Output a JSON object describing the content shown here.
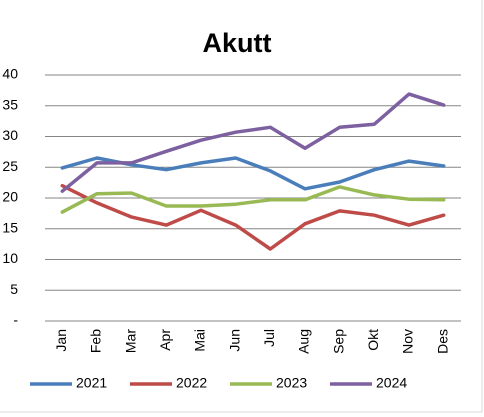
{
  "chart_data": {
    "type": "line",
    "title": "Akutt",
    "categories": [
      "Jan",
      "Feb",
      "Mar",
      "Apr",
      "Mai",
      "Jun",
      "Jul",
      "Aug",
      "Sep",
      "Okt",
      "Nov",
      "Des"
    ],
    "series": [
      {
        "name": "2021",
        "color": "#4a7ebb",
        "values": [
          24.9,
          26.5,
          25.4,
          24.6,
          25.7,
          26.5,
          24.4,
          21.5,
          22.6,
          24.6,
          26.0,
          25.2
        ]
      },
      {
        "name": "2022",
        "color": "#be4b48",
        "values": [
          22.0,
          19.2,
          16.9,
          15.6,
          18.0,
          15.6,
          11.7,
          15.8,
          17.9,
          17.2,
          15.6,
          17.2
        ]
      },
      {
        "name": "2023",
        "color": "#98b954",
        "values": [
          17.7,
          20.7,
          20.8,
          18.7,
          18.7,
          19.0,
          19.7,
          19.7,
          21.8,
          20.5,
          19.8,
          19.7
        ]
      },
      {
        "name": "2024",
        "color": "#7d60a0",
        "values": [
          21.1,
          25.7,
          25.7,
          27.6,
          29.4,
          30.7,
          31.5,
          28.1,
          31.5,
          32.0,
          36.9,
          35.1
        ]
      }
    ],
    "ylim": [
      0,
      40
    ],
    "yticks": [
      {
        "value": 0,
        "label": "-"
      },
      5,
      10,
      15,
      20,
      25,
      30,
      35,
      40
    ],
    "grid": true,
    "legend": "bottom"
  }
}
